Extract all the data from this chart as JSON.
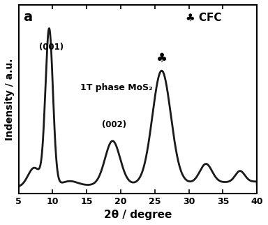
{
  "title_label": "a",
  "xlabel": "2θ / degree",
  "ylabel": "Indensity / a.u.",
  "xlim": [
    5,
    40
  ],
  "legend_symbol": "♣",
  "legend_text": " CFC",
  "annotation_001": "(001)",
  "annotation_002": "(002)",
  "annotation_phase": "1T phase MoS₂",
  "background_color": "#ffffff",
  "line_color": "#1a1a1a",
  "line_width": 2.0
}
